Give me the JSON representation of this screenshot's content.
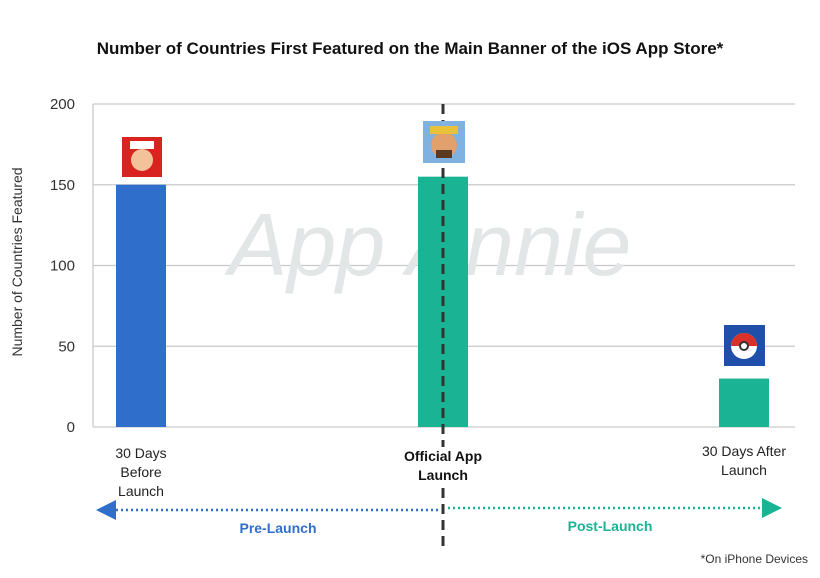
{
  "chart_data": {
    "type": "bar",
    "title": "Number of Countries First Featured on the Main Banner of the iOS App Store*",
    "y_label": "Number of Countries Featured",
    "categories": [
      "30 Days Before Launch",
      "Official App Launch",
      "30 Days After Launch"
    ],
    "values": [
      150,
      155,
      30
    ],
    "colors": [
      "#2f6fcb",
      "#1ab394",
      "#1ab394"
    ],
    "ylim": [
      0,
      200
    ],
    "yticks": [
      0,
      50,
      100,
      150,
      200
    ],
    "grid": true,
    "annotations": {
      "pre": "Pre-Launch",
      "post": "Post-Launch",
      "footnote": "*On iPhone Devices",
      "watermark": "App Annie"
    }
  }
}
